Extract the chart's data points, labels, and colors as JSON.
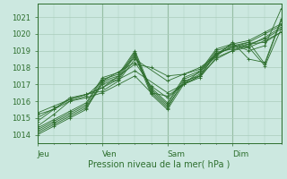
{
  "title": "Pression niveau de la mer( hPa )",
  "ylabel_ticks": [
    1014,
    1015,
    1016,
    1017,
    1018,
    1019,
    1020,
    1021
  ],
  "ylim": [
    1013.5,
    1021.8
  ],
  "xlim": [
    0,
    90
  ],
  "day_ticks": [
    0,
    24,
    48,
    72
  ],
  "day_labels": [
    "Jeu",
    "Ven",
    "Sam",
    "Dim"
  ],
  "bg_color": "#cce8e0",
  "grid_color": "#aaccbb",
  "line_color": "#2d6e2d",
  "marker": "+",
  "lines": [
    {
      "x": [
        0,
        6,
        12,
        18,
        24,
        30,
        36,
        42,
        48,
        54,
        60,
        66,
        72,
        78,
        84,
        90
      ],
      "y": [
        1014.0,
        1014.5,
        1015.0,
        1015.5,
        1017.2,
        1017.5,
        1018.9,
        1016.5,
        1015.6,
        1017.2,
        1017.5,
        1018.8,
        1019.2,
        1019.4,
        1019.7,
        1020.3
      ]
    },
    {
      "x": [
        0,
        6,
        12,
        18,
        24,
        30,
        36,
        42,
        48,
        54,
        60,
        66,
        72,
        78,
        84,
        90
      ],
      "y": [
        1014.1,
        1014.6,
        1015.1,
        1015.6,
        1017.0,
        1017.3,
        1018.7,
        1016.4,
        1015.5,
        1017.0,
        1017.4,
        1018.6,
        1019.0,
        1019.2,
        1019.6,
        1020.1
      ]
    },
    {
      "x": [
        0,
        6,
        12,
        18,
        24,
        30,
        36,
        42,
        48,
        54,
        60,
        66,
        72,
        78,
        84,
        90
      ],
      "y": [
        1014.2,
        1014.7,
        1015.2,
        1015.7,
        1017.1,
        1017.4,
        1018.8,
        1016.6,
        1015.7,
        1017.1,
        1017.6,
        1018.9,
        1019.1,
        1019.3,
        1019.8,
        1020.4
      ]
    },
    {
      "x": [
        0,
        6,
        12,
        18,
        24,
        30,
        36,
        42,
        48,
        54,
        60,
        66,
        72,
        78,
        84,
        90
      ],
      "y": [
        1014.3,
        1014.8,
        1015.3,
        1015.8,
        1017.3,
        1017.6,
        1019.0,
        1016.7,
        1015.8,
        1017.3,
        1017.7,
        1019.0,
        1019.3,
        1019.5,
        1020.0,
        1020.5
      ]
    },
    {
      "x": [
        0,
        6,
        12,
        18,
        24,
        30,
        36,
        42,
        48,
        54,
        60,
        66,
        72,
        78,
        84,
        90
      ],
      "y": [
        1014.4,
        1014.9,
        1015.4,
        1015.9,
        1017.4,
        1017.7,
        1018.6,
        1016.8,
        1015.9,
        1017.4,
        1017.8,
        1019.1,
        1019.4,
        1019.6,
        1020.1,
        1020.6
      ]
    },
    {
      "x": [
        0,
        6,
        12,
        18,
        24,
        36,
        42,
        48,
        60,
        72,
        78,
        84,
        90
      ],
      "y": [
        1014.5,
        1015.2,
        1016.0,
        1016.3,
        1017.2,
        1018.3,
        1016.9,
        1016.2,
        1017.8,
        1019.5,
        1018.5,
        1018.3,
        1020.9
      ]
    },
    {
      "x": [
        0,
        6,
        12,
        24,
        30,
        36,
        48,
        54,
        60,
        66,
        72,
        78,
        84,
        90
      ],
      "y": [
        1014.8,
        1015.5,
        1016.2,
        1016.6,
        1017.2,
        1018.5,
        1017.2,
        1017.6,
        1017.9,
        1018.8,
        1019.4,
        1019.0,
        1019.3,
        1021.5
      ]
    },
    {
      "x": [
        0,
        12,
        18,
        24,
        36,
        42,
        48,
        54,
        60,
        66,
        72,
        78,
        84,
        90
      ],
      "y": [
        1015.0,
        1016.1,
        1016.4,
        1016.8,
        1018.2,
        1018.0,
        1017.5,
        1017.6,
        1018.0,
        1018.7,
        1019.3,
        1019.2,
        1018.1,
        1020.3
      ]
    },
    {
      "x": [
        0,
        6,
        12,
        18,
        24,
        30,
        36,
        42,
        48,
        54,
        60,
        66,
        72,
        78,
        84,
        90
      ],
      "y": [
        1015.2,
        1015.5,
        1016.0,
        1016.2,
        1016.5,
        1017.0,
        1017.5,
        1016.5,
        1016.3,
        1017.0,
        1017.5,
        1018.5,
        1019.0,
        1019.4,
        1019.5,
        1020.1
      ]
    },
    {
      "x": [
        0,
        6,
        12,
        18,
        24,
        36,
        48,
        60,
        66,
        72,
        78,
        84,
        90
      ],
      "y": [
        1015.3,
        1015.7,
        1016.1,
        1016.4,
        1016.8,
        1017.8,
        1016.5,
        1017.5,
        1018.8,
        1019.2,
        1019.5,
        1018.2,
        1020.8
      ]
    }
  ]
}
